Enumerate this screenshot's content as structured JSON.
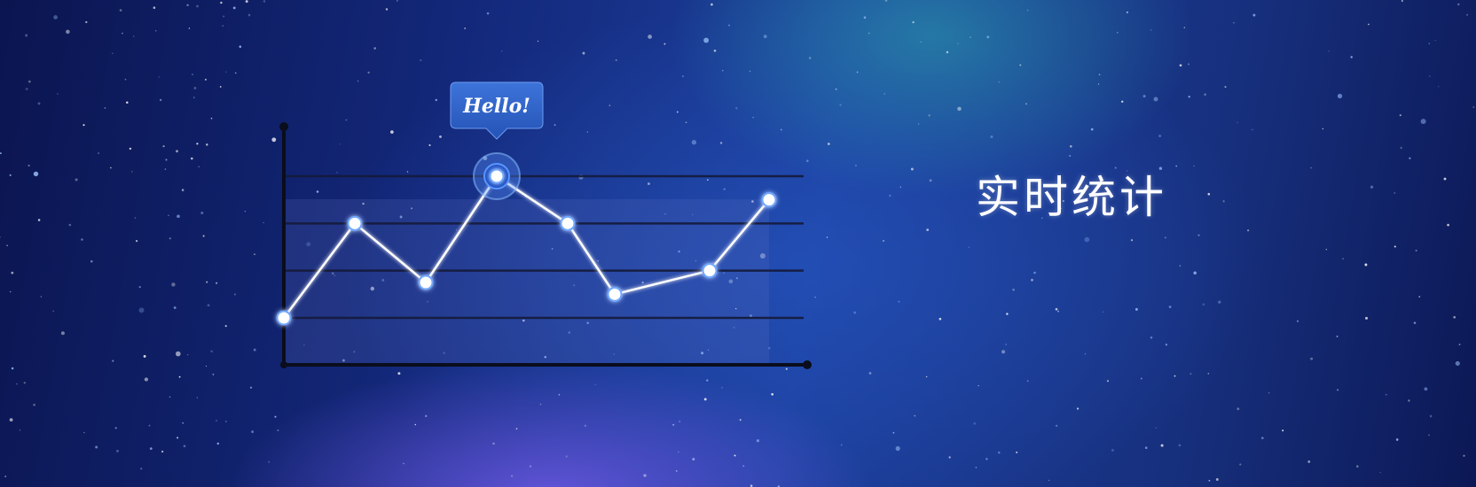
{
  "headline": "实时统计",
  "tooltip_text": "Hello!",
  "colors": {
    "line": "#ffffff",
    "axis": "#0a0d1c",
    "gridline": "#141a3a",
    "point_glow": "#6fa8ff",
    "tooltip_bg": "#2f62c8"
  },
  "chart_data": {
    "type": "line",
    "title": "",
    "xlabel": "",
    "ylabel": "",
    "x": [
      0,
      1,
      2,
      3,
      4,
      5,
      6,
      7
    ],
    "series": [
      {
        "values": [
          1.0,
          3.0,
          1.75,
          4.0,
          3.0,
          1.5,
          2.0,
          3.5
        ]
      }
    ],
    "highlight_index": 3,
    "ylim": [
      -1,
      5
    ],
    "gridlines_y": [
      1,
      2,
      3,
      4
    ],
    "grid": true,
    "legend": "none"
  }
}
